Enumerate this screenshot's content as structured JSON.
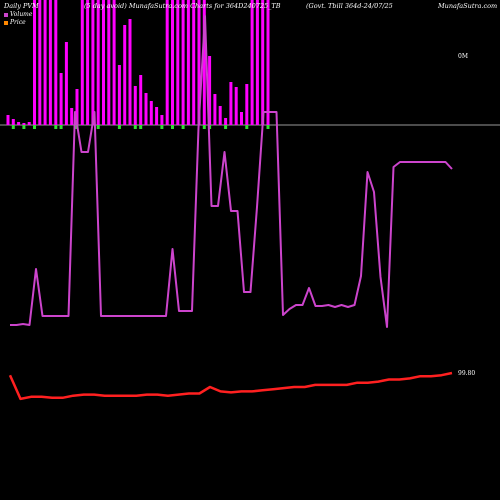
{
  "header": {
    "left": "Daily PVM",
    "center": "(5 day avoid) MunafaSutra.com Charts for 364D240725_TB",
    "right_mid": "(Govt. Tbill 364d-24/07/25",
    "right": "MunafaSutra.com"
  },
  "legend": {
    "volume_label": "Volume",
    "price_label": "Price",
    "volume_color": "#cc44cc",
    "price_color": "#ff8800"
  },
  "axis_labels": {
    "volume_zero": "0M",
    "price": "99.80"
  },
  "colors": {
    "background": "#000000",
    "volume_bar": "#ff00ff",
    "down_bar": "#33dd33",
    "volume_line": "#cc44cc",
    "price_line": "#ff2020",
    "baseline": "#999999"
  },
  "chart_data": {
    "type": "bar+line",
    "series": [
      {
        "name": "Volume",
        "values": [
          10,
          6,
          3,
          2,
          3,
          200,
          200,
          200,
          200,
          200,
          52,
          83,
          17,
          36,
          200,
          200,
          200,
          200,
          200,
          200,
          200,
          60,
          100,
          106,
          39,
          50,
          32,
          24,
          18,
          10,
          200,
          200,
          200,
          200,
          200,
          200,
          200,
          200,
          69,
          31,
          19,
          7,
          43,
          38,
          13,
          41,
          200,
          200,
          200,
          200
        ]
      },
      {
        "name": "Price",
        "values": [
          99.53,
          99.31,
          99.33,
          99.33,
          99.32,
          99.32,
          99.34,
          99.35,
          99.35,
          99.34,
          99.34,
          99.34,
          99.34,
          99.35,
          99.35,
          99.34,
          99.35,
          99.36,
          99.36,
          99.42,
          99.38,
          99.37,
          99.38,
          99.38,
          99.39,
          99.4,
          99.41,
          99.42,
          99.42,
          99.44,
          99.44,
          99.44,
          99.44,
          99.46,
          99.46,
          99.47,
          99.49,
          99.49,
          99.5,
          99.52,
          99.52,
          99.53,
          99.55
        ]
      }
    ],
    "volume_line": [
      47,
      47,
      48,
      47,
      103,
      56,
      56,
      56,
      56,
      56,
      260,
      220,
      220,
      260,
      56,
      56,
      56,
      56,
      56,
      56,
      56,
      56,
      56,
      56,
      56,
      123,
      61,
      61,
      61,
      244,
      356,
      166,
      166,
      220,
      161,
      161,
      80,
      80,
      165,
      260,
      260,
      260,
      57,
      63,
      67,
      67,
      84,
      66,
      66,
      67,
      65,
      67,
      65,
      67,
      96,
      200,
      180,
      95,
      45,
      205,
      210,
      210,
      210,
      210,
      210,
      210,
      210,
      210,
      203
    ]
  }
}
